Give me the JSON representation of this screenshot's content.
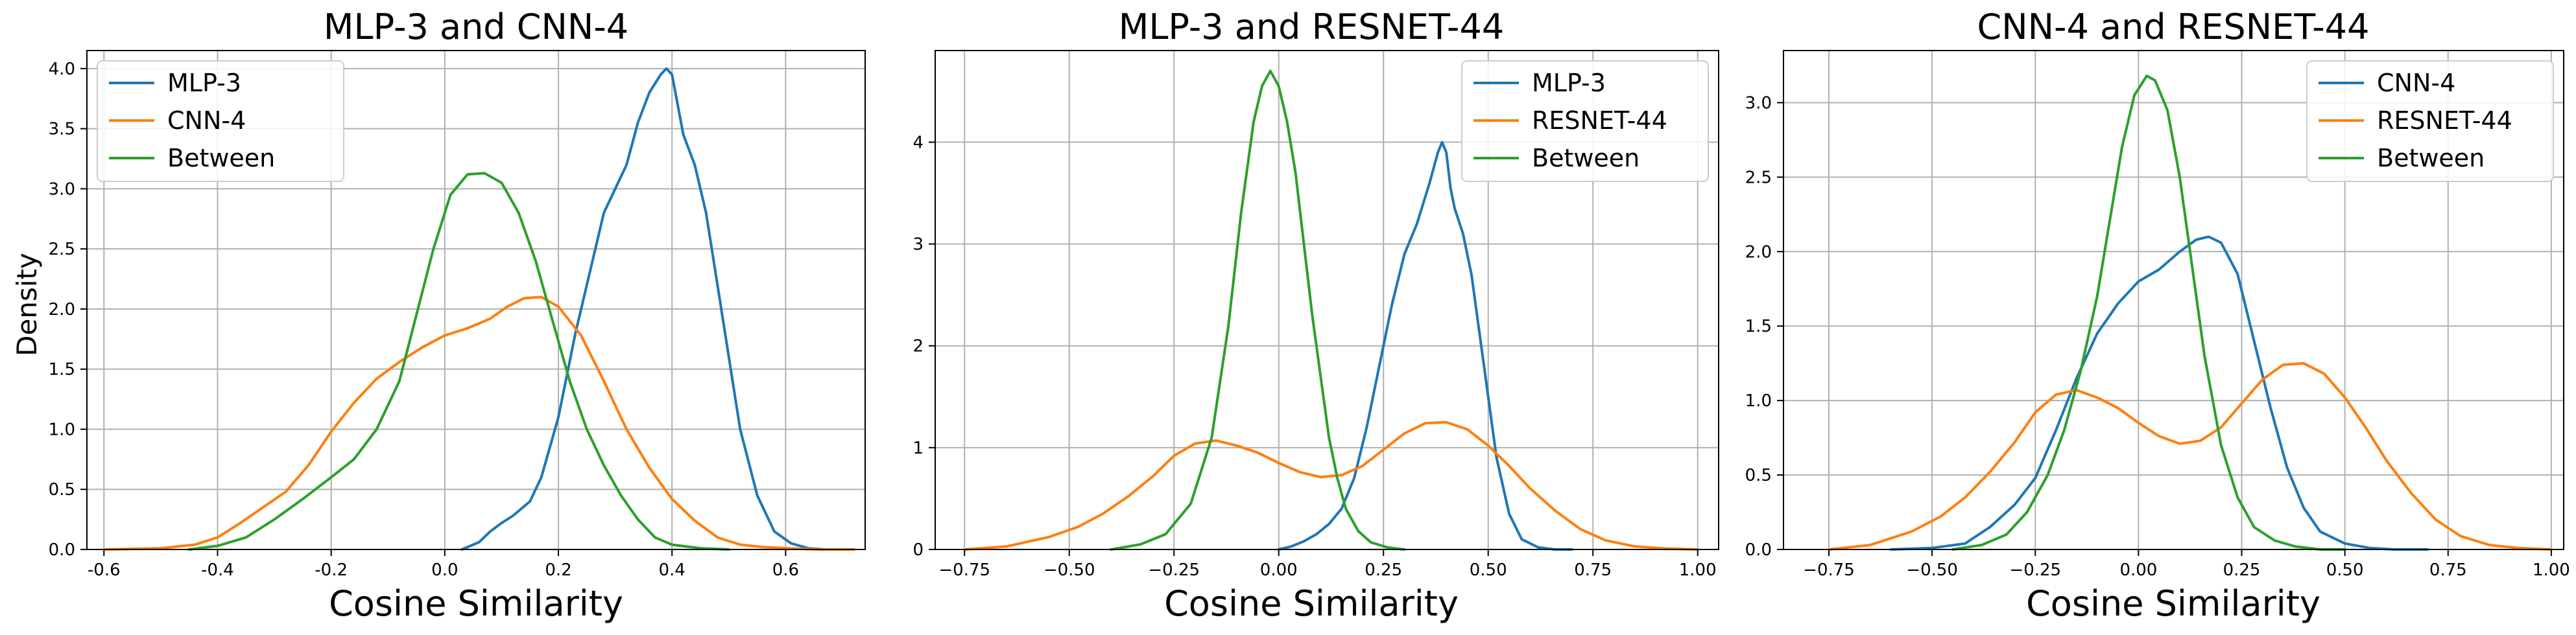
{
  "chart_data": [
    {
      "type": "line",
      "title": "MLP-3 and CNN-4",
      "xlabel": "Cosine Similarity",
      "ylabel": "Density",
      "xlim": [
        -0.63,
        0.74
      ],
      "ylim": [
        0,
        4.15
      ],
      "xticks": [
        -0.6,
        -0.4,
        -0.2,
        0.0,
        0.2,
        0.4,
        0.6
      ],
      "xtick_labels": [
        "-0.6",
        "-0.4",
        "-0.2",
        "0.0",
        "0.2",
        "0.4",
        "0.6"
      ],
      "yticks": [
        0,
        0.5,
        1.0,
        1.5,
        2.0,
        2.5,
        3.0,
        3.5,
        4.0
      ],
      "ytick_labels": [
        "0.0",
        "0.5",
        "1.0",
        "1.5",
        "2.0",
        "2.5",
        "3.0",
        "3.5",
        "4.0"
      ],
      "grid": true,
      "legend_position": "top-left",
      "series": [
        {
          "name": "MLP-3",
          "color": "#1f77b4",
          "x": [
            0.03,
            0.06,
            0.08,
            0.1,
            0.12,
            0.15,
            0.17,
            0.2,
            0.23,
            0.26,
            0.28,
            0.3,
            0.32,
            0.34,
            0.36,
            0.38,
            0.39,
            0.4,
            0.41,
            0.42,
            0.44,
            0.46,
            0.48,
            0.5,
            0.52,
            0.55,
            0.58,
            0.61,
            0.64,
            0.67,
            0.7,
            0.72
          ],
          "y": [
            0.0,
            0.06,
            0.15,
            0.22,
            0.28,
            0.4,
            0.6,
            1.1,
            1.8,
            2.4,
            2.8,
            3.0,
            3.2,
            3.55,
            3.8,
            3.95,
            4.0,
            3.95,
            3.7,
            3.45,
            3.2,
            2.8,
            2.2,
            1.6,
            1.0,
            0.45,
            0.15,
            0.05,
            0.01,
            0.0,
            0.0,
            0.0
          ]
        },
        {
          "name": "CNN-4",
          "color": "#ff7f0e",
          "x": [
            -0.6,
            -0.5,
            -0.44,
            -0.4,
            -0.36,
            -0.32,
            -0.28,
            -0.24,
            -0.2,
            -0.16,
            -0.12,
            -0.08,
            -0.04,
            0.0,
            0.04,
            0.08,
            0.11,
            0.14,
            0.17,
            0.2,
            0.24,
            0.28,
            0.32,
            0.36,
            0.4,
            0.44,
            0.48,
            0.52,
            0.56,
            0.6,
            0.66,
            0.72
          ],
          "y": [
            0.0,
            0.01,
            0.04,
            0.1,
            0.22,
            0.35,
            0.48,
            0.7,
            0.98,
            1.22,
            1.42,
            1.56,
            1.68,
            1.78,
            1.84,
            1.92,
            2.02,
            2.09,
            2.1,
            2.02,
            1.78,
            1.4,
            1.0,
            0.68,
            0.42,
            0.24,
            0.1,
            0.04,
            0.02,
            0.01,
            0.0,
            0.0
          ]
        },
        {
          "name": "Between",
          "color": "#2ca02c",
          "x": [
            -0.45,
            -0.4,
            -0.35,
            -0.3,
            -0.25,
            -0.2,
            -0.16,
            -0.12,
            -0.08,
            -0.05,
            -0.02,
            0.01,
            0.04,
            0.07,
            0.1,
            0.13,
            0.16,
            0.19,
            0.22,
            0.25,
            0.28,
            0.31,
            0.34,
            0.37,
            0.4,
            0.45,
            0.5
          ],
          "y": [
            0.0,
            0.03,
            0.1,
            0.25,
            0.42,
            0.6,
            0.75,
            1.0,
            1.4,
            1.95,
            2.5,
            2.95,
            3.12,
            3.13,
            3.05,
            2.8,
            2.4,
            1.9,
            1.4,
            1.0,
            0.7,
            0.45,
            0.25,
            0.1,
            0.04,
            0.01,
            0.0
          ]
        }
      ]
    },
    {
      "type": "line",
      "title": "MLP-3 and RESNET-44",
      "xlabel": "Cosine Similarity",
      "ylabel": "",
      "xlim": [
        -0.82,
        1.05
      ],
      "ylim": [
        0,
        4.9
      ],
      "xticks": [
        -0.75,
        -0.5,
        -0.25,
        0.0,
        0.25,
        0.5,
        0.75,
        1.0
      ],
      "xtick_labels": [
        "−0.75",
        "−0.50",
        "−0.25",
        "0.00",
        "0.25",
        "0.50",
        "0.75",
        "1.00"
      ],
      "yticks": [
        0,
        1,
        2,
        3,
        4
      ],
      "ytick_labels": [
        "0",
        "1",
        "2",
        "3",
        "4"
      ],
      "grid": true,
      "legend_position": "top-right",
      "series": [
        {
          "name": "MLP-3",
          "color": "#1f77b4",
          "x": [
            0.0,
            0.03,
            0.06,
            0.09,
            0.12,
            0.15,
            0.18,
            0.21,
            0.24,
            0.27,
            0.3,
            0.33,
            0.36,
            0.38,
            0.39,
            0.4,
            0.41,
            0.42,
            0.44,
            0.46,
            0.48,
            0.5,
            0.52,
            0.55,
            0.58,
            0.62,
            0.66,
            0.7
          ],
          "y": [
            0.0,
            0.03,
            0.08,
            0.15,
            0.25,
            0.4,
            0.7,
            1.2,
            1.8,
            2.4,
            2.9,
            3.2,
            3.6,
            3.9,
            4.0,
            3.9,
            3.55,
            3.35,
            3.1,
            2.7,
            2.1,
            1.5,
            0.9,
            0.35,
            0.1,
            0.02,
            0.0,
            0.0
          ]
        },
        {
          "name": "RESNET-44",
          "color": "#ff7f0e",
          "x": [
            -0.75,
            -0.65,
            -0.55,
            -0.48,
            -0.42,
            -0.36,
            -0.3,
            -0.25,
            -0.2,
            -0.15,
            -0.1,
            -0.05,
            0.0,
            0.05,
            0.1,
            0.15,
            0.2,
            0.25,
            0.3,
            0.35,
            0.4,
            0.45,
            0.5,
            0.55,
            0.6,
            0.66,
            0.72,
            0.78,
            0.85,
            0.92,
            1.0
          ],
          "y": [
            0.0,
            0.03,
            0.12,
            0.22,
            0.35,
            0.52,
            0.72,
            0.92,
            1.04,
            1.07,
            1.02,
            0.95,
            0.85,
            0.76,
            0.71,
            0.73,
            0.82,
            0.98,
            1.14,
            1.24,
            1.25,
            1.18,
            1.02,
            0.82,
            0.6,
            0.38,
            0.2,
            0.09,
            0.03,
            0.01,
            0.0
          ]
        },
        {
          "name": "Between",
          "color": "#2ca02c",
          "x": [
            -0.4,
            -0.33,
            -0.27,
            -0.21,
            -0.16,
            -0.12,
            -0.09,
            -0.06,
            -0.04,
            -0.02,
            0.0,
            0.02,
            0.04,
            0.06,
            0.08,
            0.1,
            0.12,
            0.14,
            0.16,
            0.19,
            0.22,
            0.26,
            0.3
          ],
          "y": [
            0.0,
            0.05,
            0.15,
            0.45,
            1.1,
            2.2,
            3.3,
            4.2,
            4.55,
            4.7,
            4.55,
            4.2,
            3.7,
            3.0,
            2.3,
            1.7,
            1.1,
            0.7,
            0.4,
            0.18,
            0.07,
            0.02,
            0.0
          ]
        }
      ]
    },
    {
      "type": "line",
      "title": "CNN-4 and RESNET-44",
      "xlabel": "Cosine Similarity",
      "ylabel": "",
      "xlim": [
        -0.86,
        1.03
      ],
      "ylim": [
        0,
        3.35
      ],
      "xticks": [
        -0.75,
        -0.5,
        -0.25,
        0.0,
        0.25,
        0.5,
        0.75,
        1.0
      ],
      "xtick_labels": [
        "−0.75",
        "−0.50",
        "−0.25",
        "0.00",
        "0.25",
        "0.50",
        "0.75",
        "1.00"
      ],
      "yticks": [
        0,
        0.5,
        1.0,
        1.5,
        2.0,
        2.5,
        3.0
      ],
      "ytick_labels": [
        "0.0",
        "0.5",
        "1.0",
        "1.5",
        "2.0",
        "2.5",
        "3.0"
      ],
      "grid": true,
      "legend_position": "top-right",
      "series": [
        {
          "name": "CNN-4",
          "color": "#1f77b4",
          "x": [
            -0.6,
            -0.5,
            -0.42,
            -0.36,
            -0.3,
            -0.25,
            -0.2,
            -0.15,
            -0.1,
            -0.05,
            0.0,
            0.05,
            0.1,
            0.14,
            0.17,
            0.2,
            0.24,
            0.28,
            0.32,
            0.36,
            0.4,
            0.44,
            0.5,
            0.56,
            0.62,
            0.7
          ],
          "y": [
            0.0,
            0.01,
            0.04,
            0.15,
            0.3,
            0.48,
            0.8,
            1.15,
            1.45,
            1.65,
            1.8,
            1.88,
            2.0,
            2.08,
            2.1,
            2.06,
            1.85,
            1.4,
            0.95,
            0.55,
            0.28,
            0.12,
            0.04,
            0.01,
            0.0,
            0.0
          ]
        },
        {
          "name": "RESNET-44",
          "color": "#ff7f0e",
          "x": [
            -0.75,
            -0.65,
            -0.55,
            -0.48,
            -0.42,
            -0.36,
            -0.3,
            -0.25,
            -0.2,
            -0.15,
            -0.1,
            -0.05,
            0.0,
            0.05,
            0.1,
            0.15,
            0.2,
            0.25,
            0.3,
            0.35,
            0.4,
            0.45,
            0.5,
            0.55,
            0.6,
            0.66,
            0.72,
            0.78,
            0.85,
            0.92,
            1.0
          ],
          "y": [
            0.0,
            0.03,
            0.12,
            0.22,
            0.35,
            0.52,
            0.72,
            0.92,
            1.04,
            1.07,
            1.02,
            0.95,
            0.85,
            0.76,
            0.71,
            0.73,
            0.82,
            0.98,
            1.14,
            1.24,
            1.25,
            1.18,
            1.02,
            0.82,
            0.6,
            0.38,
            0.2,
            0.09,
            0.03,
            0.01,
            0.0
          ]
        },
        {
          "name": "Between",
          "color": "#2ca02c",
          "x": [
            -0.45,
            -0.38,
            -0.32,
            -0.27,
            -0.22,
            -0.18,
            -0.14,
            -0.1,
            -0.07,
            -0.04,
            -0.01,
            0.02,
            0.04,
            0.07,
            0.1,
            0.13,
            0.16,
            0.2,
            0.24,
            0.28,
            0.33,
            0.38,
            0.44,
            0.5
          ],
          "y": [
            0.0,
            0.03,
            0.1,
            0.25,
            0.5,
            0.8,
            1.2,
            1.7,
            2.2,
            2.7,
            3.05,
            3.18,
            3.15,
            2.95,
            2.5,
            1.9,
            1.3,
            0.7,
            0.35,
            0.15,
            0.06,
            0.02,
            0.0,
            0.0
          ]
        }
      ]
    }
  ]
}
